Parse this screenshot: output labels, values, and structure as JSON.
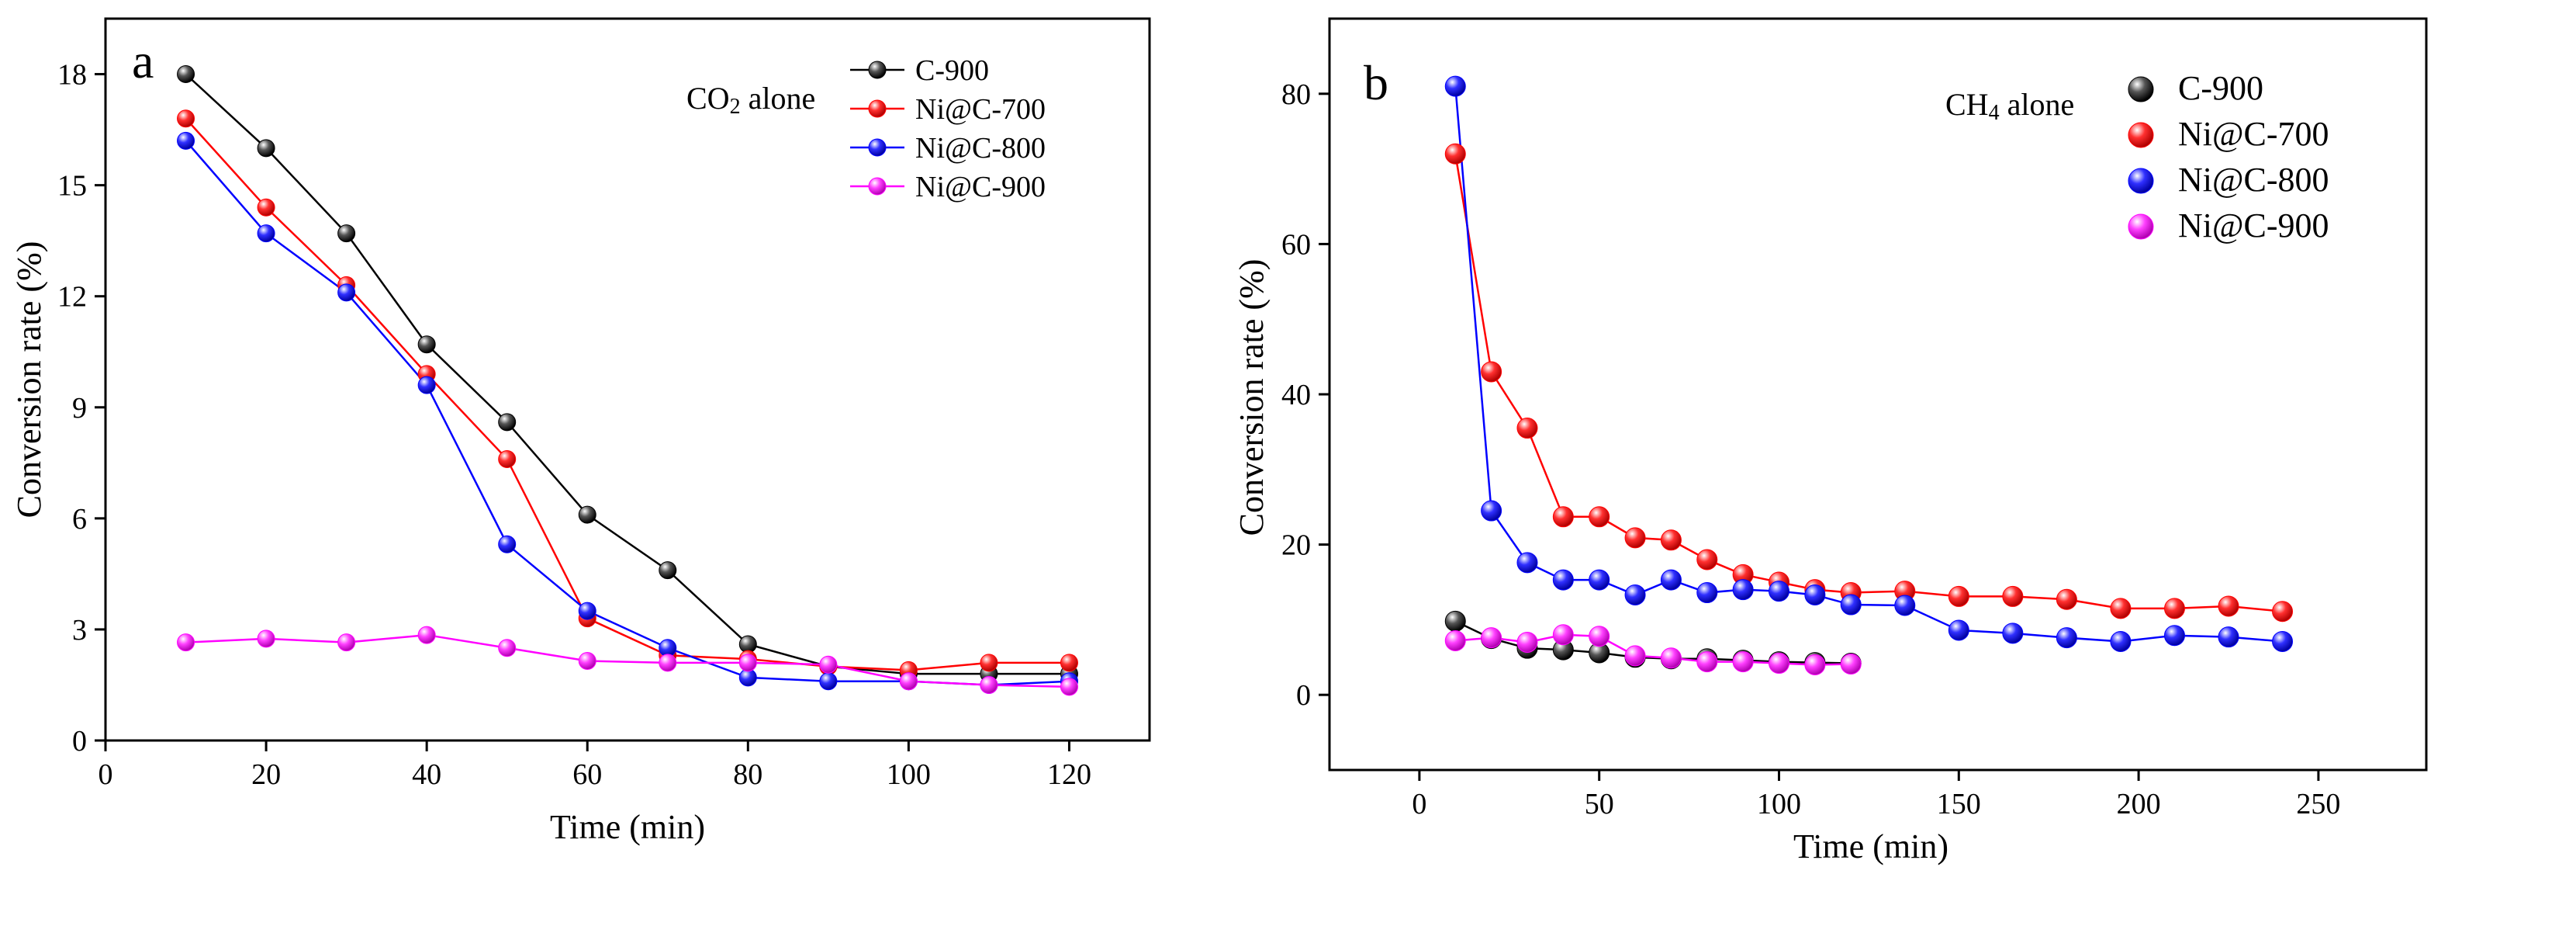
{
  "chart_data": [
    {
      "type": "line",
      "panel_label": "a",
      "annotation_main": "CO",
      "annotation_sub": "2",
      "annotation_rest": " alone",
      "xlabel": "Time (min)",
      "ylabel": "Conversion rate (%)",
      "xlim": [
        0,
        130
      ],
      "ylim": [
        0,
        19.5
      ],
      "xticks": [
        0,
        20,
        40,
        60,
        80,
        100,
        120
      ],
      "yticks": [
        0,
        3,
        6,
        9,
        12,
        15,
        18
      ],
      "legend_position": "top-right",
      "series": [
        {
          "name": "C-900",
          "color": "#000000",
          "x": [
            10,
            20,
            30,
            40,
            50,
            60,
            70,
            80,
            90,
            100,
            110,
            120
          ],
          "y": [
            18.0,
            16.0,
            13.7,
            10.7,
            8.6,
            6.1,
            4.6,
            2.6,
            2.0,
            1.8,
            1.8,
            1.8
          ]
        },
        {
          "name": "Ni@C-700",
          "color": "#ff0000",
          "x": [
            10,
            20,
            30,
            40,
            50,
            60,
            70,
            80,
            90,
            100,
            110,
            120
          ],
          "y": [
            16.8,
            14.4,
            12.3,
            9.9,
            7.6,
            3.3,
            2.3,
            2.2,
            2.0,
            1.9,
            2.1,
            2.1
          ]
        },
        {
          "name": "Ni@C-800",
          "color": "#0000ff",
          "x": [
            10,
            20,
            30,
            40,
            50,
            60,
            70,
            80,
            90,
            100,
            110,
            120
          ],
          "y": [
            16.2,
            13.7,
            12.1,
            9.6,
            5.3,
            3.5,
            2.5,
            1.7,
            1.6,
            1.6,
            1.5,
            1.6
          ]
        },
        {
          "name": "Ni@C-900",
          "color": "#ff00ff",
          "x": [
            10,
            20,
            30,
            40,
            50,
            60,
            70,
            80,
            90,
            100,
            110,
            120
          ],
          "y": [
            2.65,
            2.75,
            2.65,
            2.85,
            2.5,
            2.15,
            2.1,
            2.1,
            2.05,
            1.6,
            1.5,
            1.45
          ]
        }
      ]
    },
    {
      "type": "line",
      "panel_label": "b",
      "annotation_main": "CH",
      "annotation_sub": "4",
      "annotation_rest": " alone",
      "xlabel": "Time (min)",
      "ylabel": "Conversion rate (%)",
      "xlim": [
        -25,
        280
      ],
      "ylim": [
        -10,
        90
      ],
      "xticks": [
        0,
        50,
        100,
        150,
        200,
        250
      ],
      "yticks": [
        0,
        20,
        40,
        60,
        80
      ],
      "legend_position": "top-right",
      "series": [
        {
          "name": "C-900",
          "color": "#000000",
          "x": [
            10,
            20,
            30,
            40,
            50,
            60,
            70,
            80,
            90,
            100,
            110,
            120
          ],
          "y": [
            9.8,
            7.5,
            6.2,
            6.0,
            5.6,
            5.0,
            4.8,
            4.8,
            4.6,
            4.4,
            4.3,
            4.2
          ]
        },
        {
          "name": "Ni@C-700",
          "color": "#ff0000",
          "x": [
            10,
            20,
            30,
            40,
            50,
            60,
            70,
            80,
            90,
            100,
            110,
            120,
            135,
            150,
            165,
            180,
            195,
            210,
            225,
            240
          ],
          "y": [
            72.0,
            43.0,
            35.5,
            23.7,
            23.7,
            20.9,
            20.6,
            18.0,
            16.0,
            15.0,
            14.0,
            13.6,
            13.8,
            13.1,
            13.1,
            12.7,
            11.5,
            11.5,
            11.8,
            11.1
          ]
        },
        {
          "name": "Ni@C-800",
          "color": "#0000ff",
          "x": [
            10,
            20,
            30,
            40,
            50,
            60,
            70,
            80,
            90,
            100,
            110,
            120,
            135,
            150,
            165,
            180,
            195,
            210,
            225,
            240
          ],
          "y": [
            81.0,
            24.5,
            17.6,
            15.3,
            15.3,
            13.3,
            15.3,
            13.6,
            14.0,
            13.8,
            13.3,
            12.0,
            11.9,
            8.6,
            8.2,
            7.6,
            7.1,
            7.9,
            7.7,
            7.1
          ]
        },
        {
          "name": "Ni@C-900",
          "color": "#ff00ff",
          "x": [
            10,
            20,
            30,
            40,
            50,
            60,
            70,
            80,
            90,
            100,
            110,
            120
          ],
          "y": [
            7.2,
            7.6,
            7.0,
            8.0,
            7.8,
            5.2,
            4.9,
            4.4,
            4.4,
            4.2,
            4.0,
            4.1
          ]
        }
      ]
    }
  ]
}
